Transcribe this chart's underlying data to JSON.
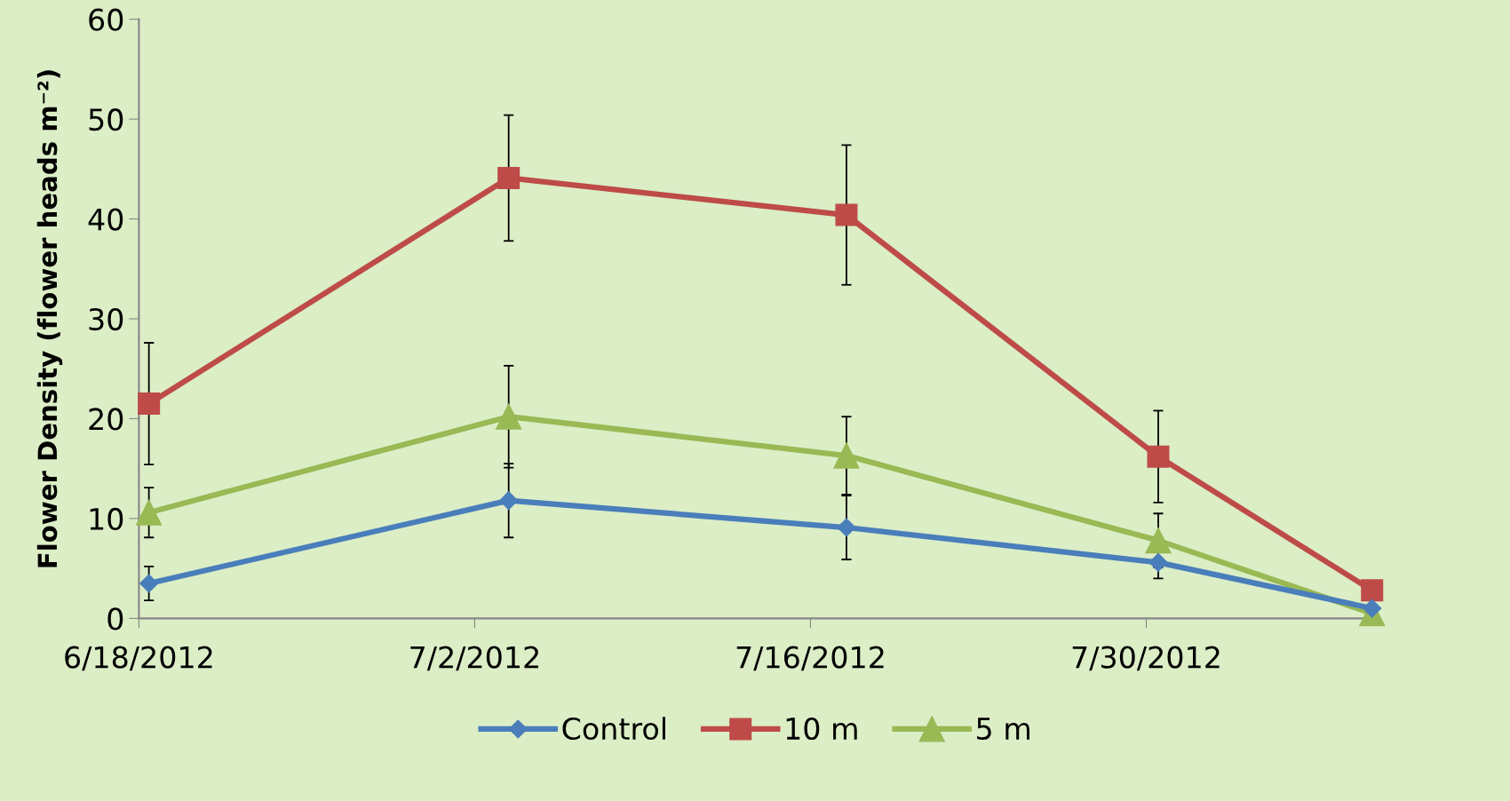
{
  "chart_data": {
    "type": "line",
    "ylabel": "Flower Density (flower heads m⁻²)",
    "x": [
      "2012-06-18T10:00",
      "2012-07-03T10:00",
      "2012-07-17T12:00",
      "2012-07-30T12:00",
      "2012-08-08T10:00"
    ],
    "series": [
      {
        "name": "Control",
        "color": "#4a7ebb",
        "marker": "diamond",
        "values": [
          3.5,
          11.8,
          9.1,
          5.6,
          1.0
        ],
        "errors": [
          1.7,
          3.7,
          3.2,
          1.6,
          null
        ]
      },
      {
        "name": "10 m",
        "color": "#be4b48",
        "marker": "square",
        "values": [
          21.5,
          44.1,
          40.4,
          16.2,
          2.8
        ],
        "errors": [
          6.1,
          6.3,
          7.0,
          4.6,
          null
        ]
      },
      {
        "name": "5 m",
        "color": "#98b954",
        "marker": "triangle",
        "values": [
          10.6,
          20.2,
          16.3,
          7.8,
          0.5
        ],
        "errors": [
          2.5,
          5.1,
          3.9,
          2.7,
          null
        ]
      }
    ],
    "xlim": [
      "2012-06-18",
      "2012-08-08T12:00"
    ],
    "xticks": [
      {
        "value": "2012-06-18",
        "label": "6/18/2012"
      },
      {
        "value": "2012-07-02",
        "label": "7/2/2012"
      },
      {
        "value": "2012-07-16",
        "label": "7/16/2012"
      },
      {
        "value": "2012-07-30",
        "label": "7/30/2012"
      }
    ],
    "ylim": [
      0,
      60
    ],
    "yticks": [
      0,
      10,
      20,
      30,
      40,
      50,
      60
    ],
    "grid": false,
    "legend": "bottom",
    "line_style": "solid"
  }
}
